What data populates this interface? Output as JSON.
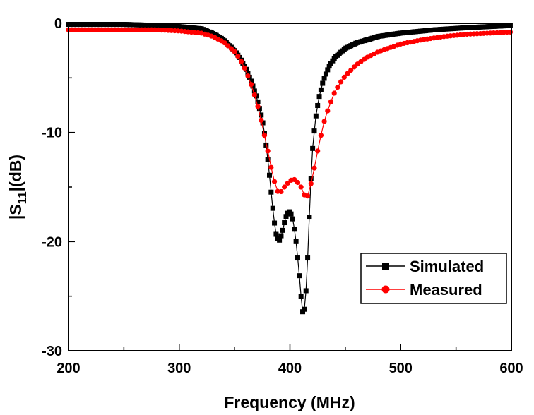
{
  "chart_data": {
    "type": "line",
    "xlabel": "Frequency (MHz)",
    "ylabel_base": "|S",
    "ylabel_sub": "11",
    "ylabel_tail": "|(dB)",
    "xlim": [
      200,
      600
    ],
    "ylim": [
      -30,
      0
    ],
    "xticks": [
      200,
      300,
      400,
      500,
      600
    ],
    "yticks": [
      -30,
      -20,
      -10,
      0
    ],
    "grid": false,
    "legend_position": "bottom-right",
    "series": [
      {
        "name": "Simulated",
        "color": "#000000",
        "marker": "square",
        "x": [
          200,
          250,
          280,
          300,
          320,
          330,
          340,
          350,
          355,
          360,
          365,
          370,
          375,
          378,
          381,
          384,
          387,
          390,
          393,
          396,
          399,
          402,
          405,
          408,
          410,
          412,
          414,
          416,
          418,
          420,
          423,
          426,
          430,
          435,
          440,
          450,
          460,
          480,
          500,
          530,
          560,
          600
        ],
        "y": [
          -0.1,
          -0.1,
          -0.2,
          -0.3,
          -0.5,
          -0.9,
          -1.5,
          -2.5,
          -3.2,
          -4.1,
          -5.3,
          -6.8,
          -8.8,
          -10.7,
          -13.4,
          -16.5,
          -19.2,
          -20.0,
          -19.2,
          -17.8,
          -17.2,
          -17.6,
          -19.5,
          -22.5,
          -25.0,
          -26.9,
          -25.5,
          -21.5,
          -16.5,
          -12.0,
          -8.8,
          -6.9,
          -5.3,
          -4.0,
          -3.2,
          -2.3,
          -1.8,
          -1.2,
          -0.9,
          -0.6,
          -0.4,
          -0.2
        ]
      },
      {
        "name": "Measured",
        "color": "#ff0000",
        "marker": "circle",
        "x": [
          200,
          250,
          280,
          300,
          320,
          330,
          340,
          350,
          355,
          360,
          365,
          370,
          375,
          380,
          385,
          390,
          395,
          400,
          405,
          410,
          415,
          420,
          425,
          430,
          435,
          440,
          445,
          450,
          460,
          470,
          480,
          500,
          520,
          540,
          560,
          580,
          600
        ],
        "y": [
          -0.6,
          -0.6,
          -0.6,
          -0.7,
          -0.9,
          -1.2,
          -1.7,
          -2.6,
          -3.3,
          -4.3,
          -5.6,
          -7.2,
          -9.3,
          -11.7,
          -14.2,
          -15.7,
          -15.0,
          -14.4,
          -14.3,
          -15.0,
          -16.2,
          -14.3,
          -11.7,
          -9.3,
          -7.7,
          -6.4,
          -5.5,
          -4.8,
          -3.8,
          -3.1,
          -2.6,
          -1.9,
          -1.5,
          -1.2,
          -1.0,
          -0.9,
          -0.8
        ]
      }
    ]
  }
}
